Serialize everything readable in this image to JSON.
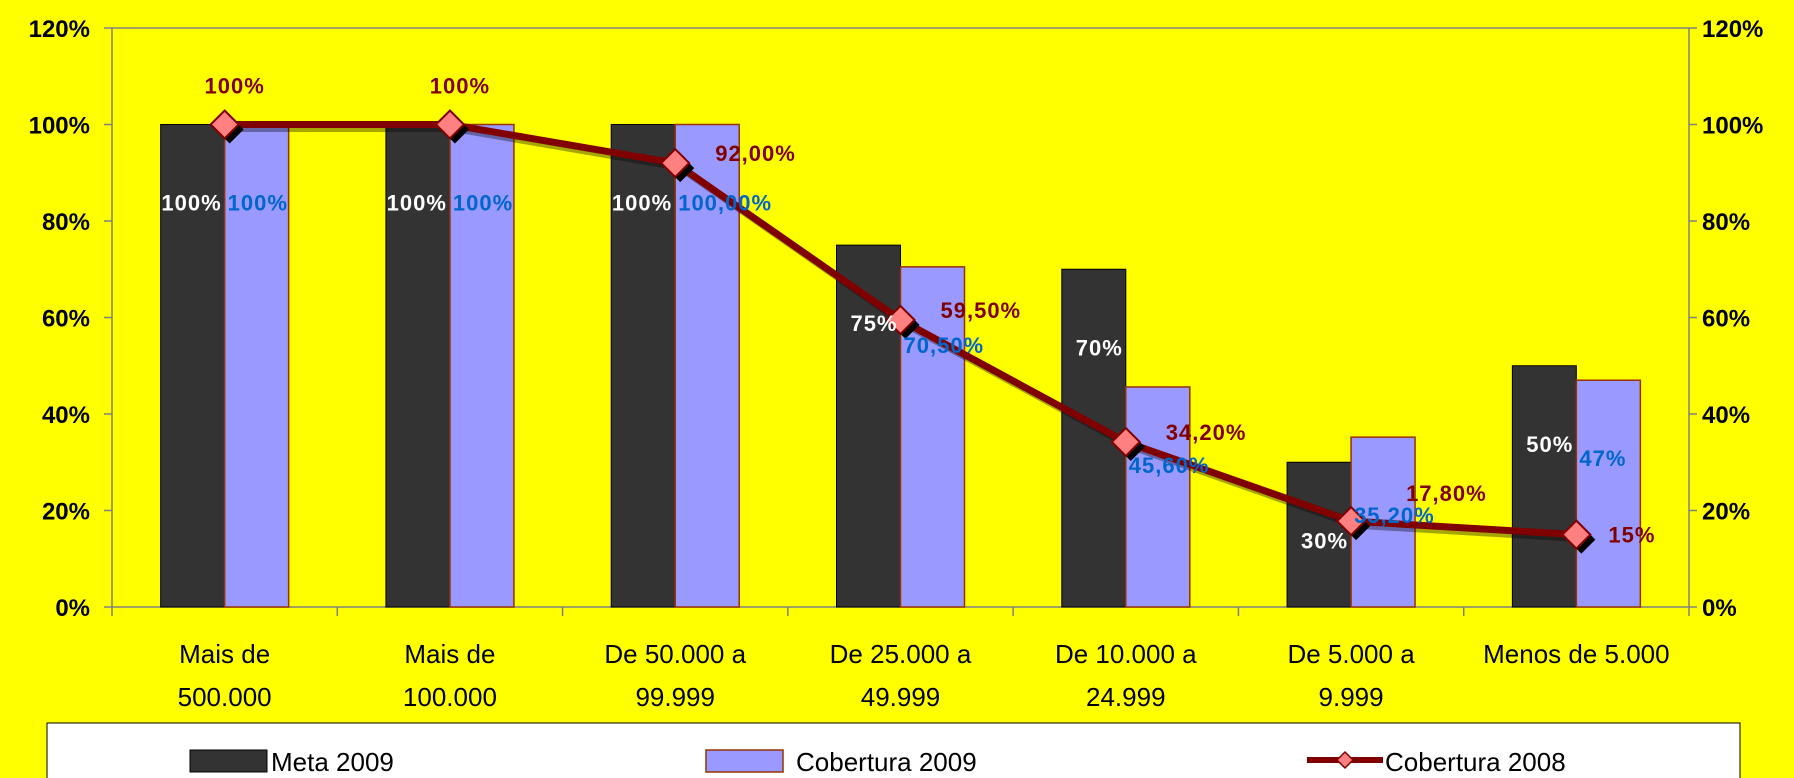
{
  "chart_data": {
    "type": "bar",
    "categories": [
      [
        "Mais de",
        "500.000"
      ],
      [
        "Mais de",
        "100.000"
      ],
      [
        "De 50.000 a",
        "99.999"
      ],
      [
        "De 25.000 a",
        "49.999"
      ],
      [
        "De 10.000 a",
        "24.999"
      ],
      [
        "De 5.000 a",
        "9.999"
      ],
      [
        "Menos de 5.000"
      ]
    ],
    "ylim": [
      0,
      120
    ],
    "yticks": [
      "0%",
      "20%",
      "40%",
      "60%",
      "80%",
      "100%",
      "120%"
    ],
    "y2ticks": [
      "0%",
      "20%",
      "40%",
      "60%",
      "80%",
      "100%",
      "120%"
    ],
    "grid": false,
    "legend_position": "bottom",
    "series": [
      {
        "name": "Meta 2009",
        "type": "bar",
        "color": "#333333",
        "values": [
          100,
          100,
          100,
          75,
          70,
          30,
          50
        ],
        "labels": [
          "100%",
          "100%",
          "100%",
          "75%",
          "70%",
          "30%",
          "50%"
        ],
        "label_color": "#FFFFFF"
      },
      {
        "name": "Cobertura 2009",
        "type": "bar",
        "color": "#9999FF",
        "edge_color": "#993300",
        "values": [
          100,
          100,
          100,
          70.5,
          45.6,
          35.2,
          47
        ],
        "labels": [
          "100%",
          "100%",
          "100,00%",
          "70,50%",
          "45,60%",
          "35,20%",
          "47%"
        ],
        "label_color": "#0066CC"
      },
      {
        "name": "Cobertura 2008",
        "type": "line",
        "color": "#800000",
        "marker_color": "#FF8080",
        "values": [
          100,
          100,
          92,
          59.5,
          34.2,
          17.8,
          15
        ],
        "labels": [
          "100%",
          "100%",
          "92,00%",
          "59,50%",
          "34,20%",
          "17,80%",
          "15%"
        ],
        "label_color": "#800000"
      }
    ]
  }
}
